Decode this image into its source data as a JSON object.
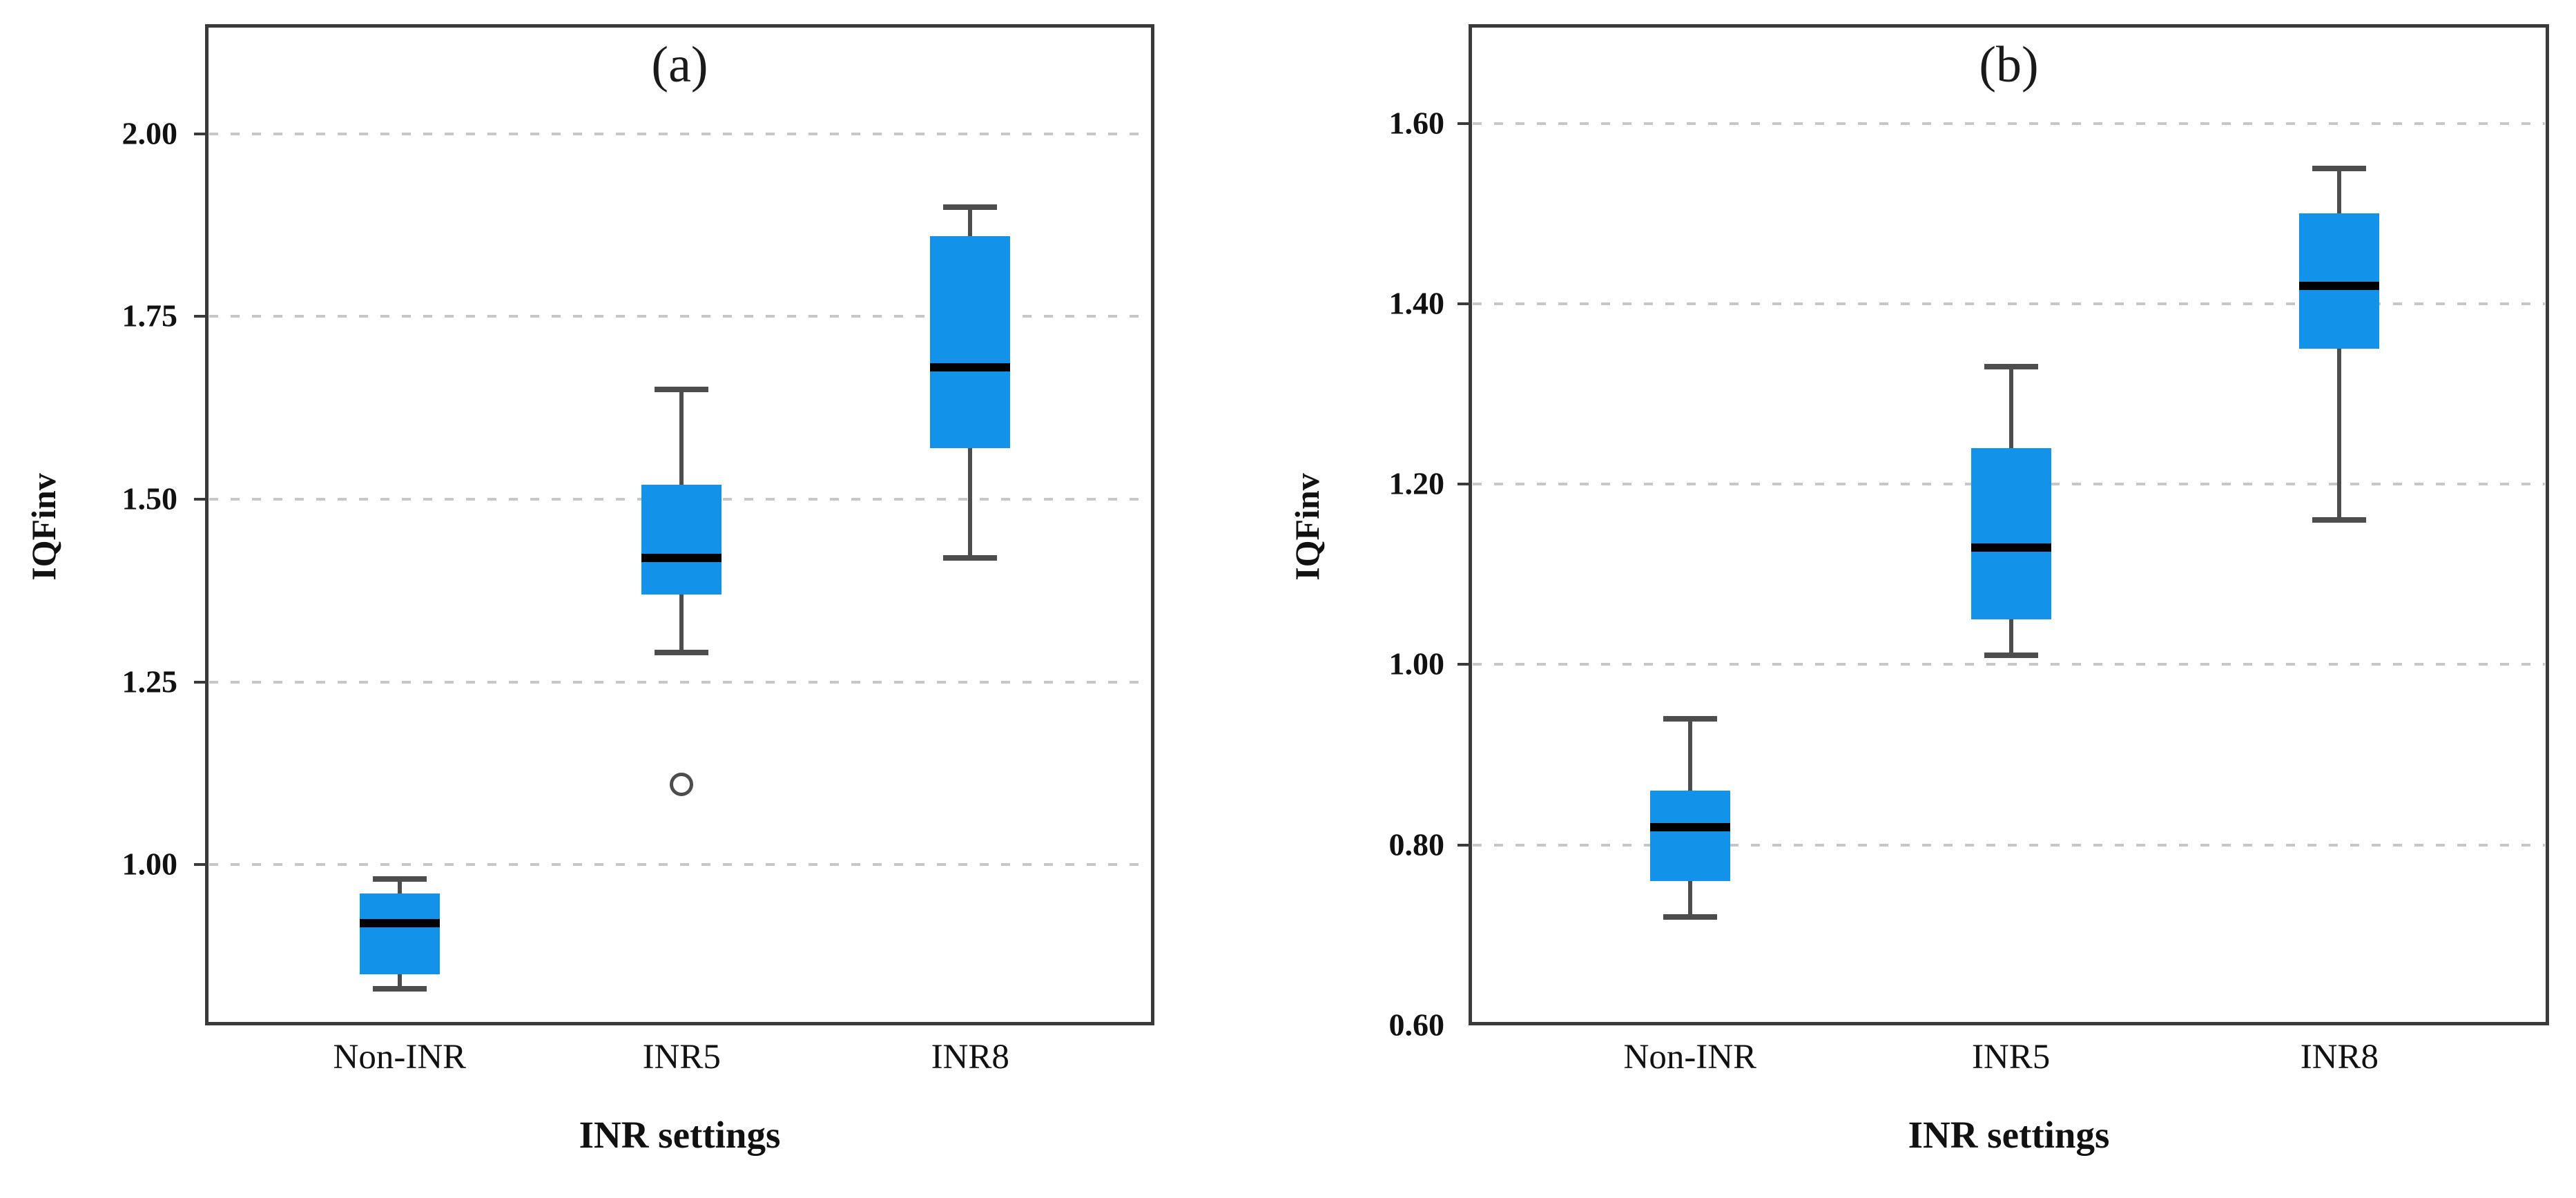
{
  "figure": {
    "colors": {
      "box_fill": "#1292E8",
      "median": "#000000",
      "whisker": "#4d4d4d",
      "grid": "#c7c7c7",
      "border": "#3a3a3a",
      "text": "#111111"
    }
  },
  "chart_data": [
    {
      "type": "boxplot",
      "title": "(a)",
      "xlabel": "INR settings",
      "ylabel": "IQFinv",
      "categories": [
        "Non-INR",
        "INR5",
        "INR8"
      ],
      "yticks": [
        2.0,
        1.75,
        1.5,
        1.25,
        1.0
      ],
      "ytick_labels": [
        "2.00",
        "1.75",
        "1.50",
        "1.25",
        "1.00"
      ],
      "ylim": [
        0.78,
        2.15
      ],
      "grid": "horizontal-dashed",
      "legend": "none",
      "series": [
        {
          "category": "Non-INR",
          "min": 0.83,
          "q1": 0.85,
          "median": 0.92,
          "q3": 0.96,
          "max": 0.98,
          "outliers": []
        },
        {
          "category": "INR5",
          "min": 1.29,
          "q1": 1.37,
          "median": 1.42,
          "q3": 1.52,
          "max": 1.65,
          "outliers": [
            1.11
          ]
        },
        {
          "category": "INR8",
          "min": 1.42,
          "q1": 1.57,
          "median": 1.68,
          "q3": 1.86,
          "max": 1.9,
          "outliers": []
        }
      ]
    },
    {
      "type": "boxplot",
      "title": "(b)",
      "xlabel": "INR settings",
      "ylabel": "IQFinv",
      "categories": [
        "Non-INR",
        "INR5",
        "INR8"
      ],
      "yticks": [
        1.6,
        1.4,
        1.2,
        1.0,
        0.8,
        0.6
      ],
      "ytick_labels": [
        "1.60",
        "1.40",
        "1.20",
        "1.00",
        "0.80",
        "0.60"
      ],
      "ylim": [
        0.6,
        1.71
      ],
      "grid": "horizontal-dashed",
      "legend": "none",
      "series": [
        {
          "category": "Non-INR",
          "min": 0.72,
          "q1": 0.76,
          "median": 0.82,
          "q3": 0.86,
          "max": 0.94,
          "outliers": []
        },
        {
          "category": "INR5",
          "min": 1.01,
          "q1": 1.05,
          "median": 1.13,
          "q3": 1.24,
          "max": 1.33,
          "outliers": []
        },
        {
          "category": "INR8",
          "min": 1.16,
          "q1": 1.35,
          "median": 1.42,
          "q3": 1.5,
          "max": 1.55,
          "outliers": []
        }
      ]
    }
  ]
}
